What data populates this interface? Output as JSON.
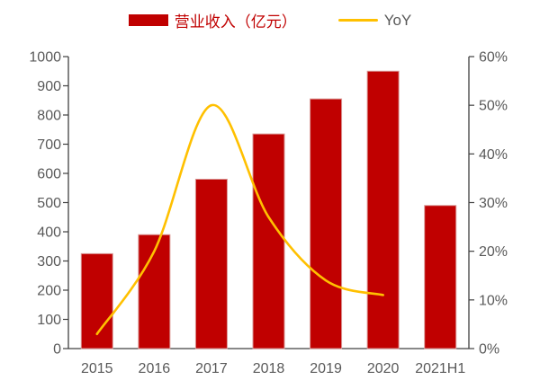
{
  "legend": {
    "bar_label": "营业收入（亿元）",
    "line_label": "YoY"
  },
  "colors": {
    "bar": "#C00000",
    "bar_edge": "#D99694",
    "line": "#FFC000",
    "axis_text": "#595959",
    "axis_line": "#404040"
  },
  "chart_data": {
    "type": "bar",
    "title": "",
    "categories": [
      "2015",
      "2016",
      "2017",
      "2018",
      "2019",
      "2020",
      "2021H1"
    ],
    "series": [
      {
        "name": "营业收入（亿元）",
        "type": "bar",
        "axis": "left",
        "values": [
          325,
          390,
          580,
          735,
          855,
          950,
          490
        ]
      },
      {
        "name": "YoY",
        "type": "line",
        "axis": "right",
        "values": [
          3,
          20,
          50,
          27,
          14,
          11,
          null
        ]
      }
    ],
    "left_axis": {
      "min": 0,
      "max": 1000,
      "step": 100,
      "tick_labels": [
        "0",
        "100",
        "200",
        "300",
        "400",
        "500",
        "600",
        "700",
        "800",
        "900",
        "1000"
      ]
    },
    "right_axis": {
      "min": 0,
      "max": 60,
      "step": 10,
      "tick_labels": [
        "0%",
        "10%",
        "20%",
        "30%",
        "40%",
        "50%",
        "60%"
      ]
    },
    "legend_position": "top",
    "grid": false
  }
}
